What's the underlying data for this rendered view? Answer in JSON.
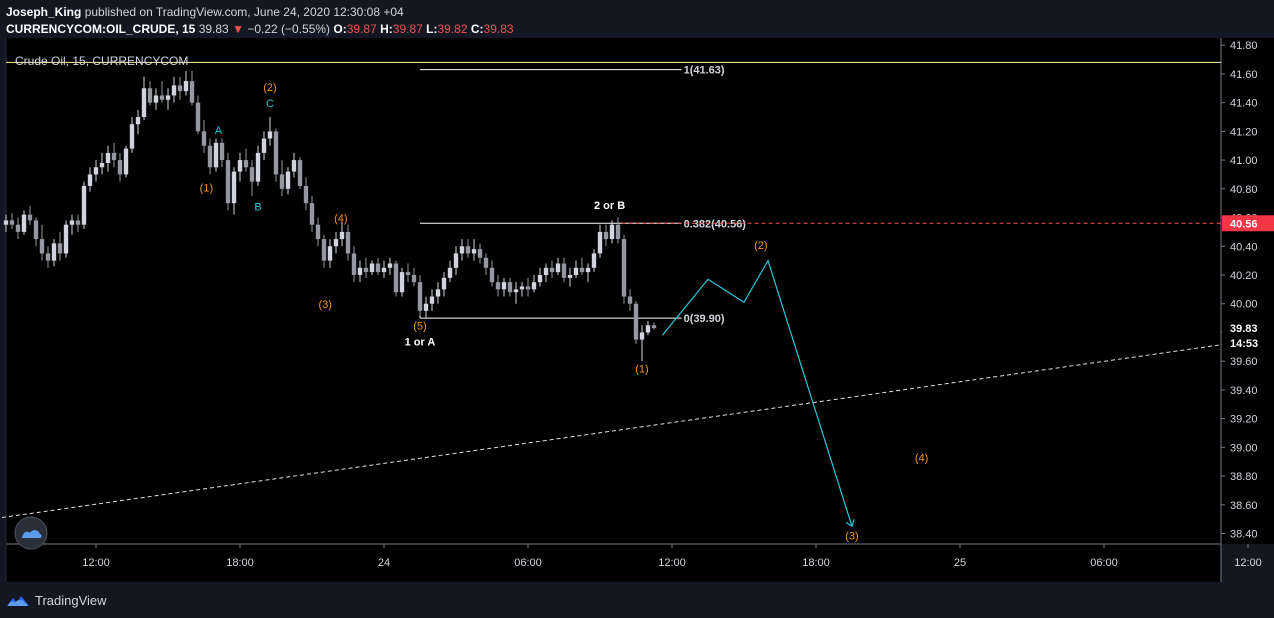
{
  "header": {
    "author": "Joseph_King",
    "published_text": "published on TradingView.com, June 24, 2020 12:30:08 +04",
    "symbol": "CURRENCYCOM:OIL_CRUDE, 15",
    "last": "39.83",
    "arrow": "▼",
    "change": "−0.22 (−0.55%)",
    "o_label": "O:",
    "o_value": "39.87",
    "h_label": "H:",
    "h_value": "39.87",
    "l_label": "L:",
    "l_value": "39.82",
    "c_label": "C:",
    "c_value": "39.83"
  },
  "legend_title": "Crude Oil, 15, CURRENCYCOM",
  "footer": {
    "brand": "TradingView"
  },
  "colors": {
    "background": "#000000",
    "up_candle": "#d1d4dc",
    "down_candle": "#9598a1",
    "orange": "#f7931a",
    "blue": "#26c6da",
    "white": "#ffffff",
    "red": "#ef5350",
    "yellow": "#fff59d"
  },
  "chart_data": {
    "type": "candlestick",
    "ylim": [
      38.32,
      41.85
    ],
    "y_ticks": [
      41.8,
      41.6,
      41.4,
      41.2,
      41.0,
      40.8,
      40.6,
      40.4,
      40.2,
      40.0,
      39.8,
      39.6,
      39.4,
      39.2,
      39.0,
      38.8,
      38.6,
      38.4
    ],
    "y_tick_labels": [
      "41.80",
      "41.60",
      "41.40",
      "41.20",
      "41.00",
      "40.80",
      "40.60",
      "40.40",
      "40.20",
      "40.00",
      "39.80",
      "39.60",
      "39.40",
      "39.20",
      "39.00",
      "38.80",
      "38.60",
      "38.40"
    ],
    "x_ticks": [
      {
        "label": "12:00",
        "t": 12
      },
      {
        "label": "18:00",
        "t": 18
      },
      {
        "label": "24",
        "t": 24
      },
      {
        "label": "06:00",
        "t": 30
      },
      {
        "label": "12:00",
        "t": 36
      },
      {
        "label": "18:00",
        "t": 42
      },
      {
        "label": "25",
        "t": 48
      },
      {
        "label": "06:00",
        "t": 54
      },
      {
        "label": "12:00",
        "t": 60
      }
    ],
    "candles": [
      [
        8.25,
        40.55,
        40.62,
        40.5,
        40.58
      ],
      [
        8.5,
        40.58,
        40.63,
        40.52,
        40.55
      ],
      [
        8.75,
        40.55,
        40.6,
        40.45,
        40.5
      ],
      [
        9.0,
        40.5,
        40.65,
        40.48,
        40.62
      ],
      [
        9.25,
        40.62,
        40.68,
        40.55,
        40.58
      ],
      [
        9.5,
        40.58,
        40.6,
        40.4,
        40.45
      ],
      [
        9.75,
        40.45,
        40.55,
        40.3,
        40.35
      ],
      [
        10.0,
        40.35,
        40.4,
        40.25,
        40.3
      ],
      [
        10.25,
        40.3,
        40.45,
        40.26,
        40.42
      ],
      [
        10.5,
        40.42,
        40.5,
        40.3,
        40.35
      ],
      [
        10.75,
        40.35,
        40.58,
        40.32,
        40.55
      ],
      [
        11.0,
        40.55,
        40.62,
        40.48,
        40.58
      ],
      [
        11.25,
        40.58,
        40.62,
        40.5,
        40.55
      ],
      [
        11.5,
        40.55,
        40.85,
        40.52,
        40.82
      ],
      [
        11.75,
        40.82,
        40.95,
        40.78,
        40.9
      ],
      [
        12.0,
        40.9,
        41.0,
        40.85,
        40.95
      ],
      [
        12.25,
        40.95,
        41.05,
        40.9,
        40.98
      ],
      [
        12.5,
        40.98,
        41.1,
        40.92,
        41.05
      ],
      [
        12.75,
        41.05,
        41.12,
        40.95,
        41.0
      ],
      [
        13.0,
        41.0,
        41.05,
        40.85,
        40.9
      ],
      [
        13.25,
        40.9,
        41.1,
        40.88,
        41.08
      ],
      [
        13.5,
        41.08,
        41.3,
        41.05,
        41.25
      ],
      [
        13.75,
        41.25,
        41.35,
        41.18,
        41.3
      ],
      [
        14.0,
        41.3,
        41.58,
        41.28,
        41.5
      ],
      [
        14.25,
        41.5,
        41.55,
        41.38,
        41.4
      ],
      [
        14.5,
        41.4,
        41.5,
        41.35,
        41.45
      ],
      [
        14.75,
        41.45,
        41.55,
        41.4,
        41.42
      ],
      [
        15.0,
        41.42,
        41.5,
        41.35,
        41.45
      ],
      [
        15.25,
        41.45,
        41.58,
        41.4,
        41.52
      ],
      [
        15.5,
        41.52,
        41.58,
        41.42,
        41.48
      ],
      [
        15.75,
        41.48,
        41.62,
        41.45,
        41.55
      ],
      [
        16.0,
        41.55,
        41.62,
        41.38,
        41.4
      ],
      [
        16.25,
        41.4,
        41.45,
        41.18,
        41.2
      ],
      [
        16.5,
        41.2,
        41.28,
        41.05,
        41.1
      ],
      [
        16.75,
        41.1,
        41.15,
        40.9,
        40.95
      ],
      [
        17.0,
        40.95,
        41.15,
        40.92,
        41.12
      ],
      [
        17.25,
        41.12,
        41.15,
        40.95,
        41.0
      ],
      [
        17.5,
        41.0,
        41.05,
        40.65,
        40.7
      ],
      [
        17.75,
        40.7,
        40.95,
        40.62,
        40.92
      ],
      [
        18.0,
        40.92,
        41.05,
        40.85,
        41.0
      ],
      [
        18.25,
        41.0,
        41.08,
        40.92,
        40.95
      ],
      [
        18.5,
        40.95,
        41.0,
        40.75,
        40.85
      ],
      [
        18.75,
        40.85,
        41.1,
        40.82,
        41.05
      ],
      [
        19.0,
        41.05,
        41.2,
        41.0,
        41.15
      ],
      [
        19.25,
        41.15,
        41.3,
        41.1,
        41.2
      ],
      [
        19.5,
        41.2,
        41.22,
        40.85,
        40.9
      ],
      [
        19.75,
        40.9,
        41.0,
        40.75,
        40.8
      ],
      [
        20.0,
        40.8,
        40.95,
        40.76,
        40.92
      ],
      [
        20.25,
        40.92,
        41.05,
        40.88,
        41.0
      ],
      [
        20.5,
        41.0,
        41.02,
        40.8,
        40.82
      ],
      [
        20.75,
        40.82,
        40.88,
        40.65,
        40.7
      ],
      [
        21.0,
        40.7,
        40.75,
        40.5,
        40.55
      ],
      [
        21.25,
        40.55,
        40.6,
        40.4,
        40.45
      ],
      [
        21.5,
        40.45,
        40.48,
        40.25,
        40.3
      ],
      [
        21.75,
        40.3,
        40.45,
        40.25,
        40.4
      ],
      [
        22.0,
        40.4,
        40.5,
        40.35,
        40.45
      ],
      [
        22.25,
        40.45,
        40.58,
        40.4,
        40.5
      ],
      [
        22.5,
        40.5,
        40.55,
        40.3,
        40.35
      ],
      [
        22.75,
        40.35,
        40.4,
        40.15,
        40.2
      ],
      [
        23.0,
        40.2,
        40.3,
        40.15,
        40.25
      ],
      [
        23.25,
        40.25,
        40.32,
        40.18,
        40.22
      ],
      [
        23.5,
        40.22,
        40.3,
        40.2,
        40.28
      ],
      [
        23.75,
        40.28,
        40.32,
        40.2,
        40.22
      ],
      [
        24.0,
        40.22,
        40.3,
        40.18,
        40.25
      ],
      [
        24.25,
        40.25,
        40.32,
        40.2,
        40.28
      ],
      [
        24.5,
        40.28,
        40.3,
        40.05,
        40.08
      ],
      [
        24.75,
        40.08,
        40.25,
        40.05,
        40.22
      ],
      [
        25.0,
        40.22,
        40.28,
        40.15,
        40.2
      ],
      [
        25.25,
        40.2,
        40.25,
        40.12,
        40.15
      ],
      [
        25.5,
        40.15,
        40.2,
        39.92,
        39.95
      ],
      [
        25.75,
        39.95,
        40.05,
        39.9,
        40.0
      ],
      [
        26.0,
        40.0,
        40.1,
        39.95,
        40.05
      ],
      [
        26.25,
        40.05,
        40.15,
        40.0,
        40.1
      ],
      [
        26.5,
        40.1,
        40.22,
        40.05,
        40.18
      ],
      [
        26.75,
        40.18,
        40.3,
        40.15,
        40.25
      ],
      [
        27.0,
        40.25,
        40.4,
        40.2,
        40.35
      ],
      [
        27.25,
        40.35,
        40.45,
        40.3,
        40.4
      ],
      [
        27.5,
        40.4,
        40.45,
        40.32,
        40.35
      ],
      [
        27.75,
        40.35,
        40.45,
        40.3,
        40.38
      ],
      [
        28.0,
        40.38,
        40.42,
        40.28,
        40.32
      ],
      [
        28.25,
        40.32,
        40.35,
        40.2,
        40.25
      ],
      [
        28.5,
        40.25,
        40.3,
        40.12,
        40.15
      ],
      [
        28.75,
        40.15,
        40.2,
        40.05,
        40.1
      ],
      [
        29.0,
        40.1,
        40.18,
        40.05,
        40.15
      ],
      [
        29.25,
        40.15,
        40.18,
        40.05,
        40.08
      ],
      [
        29.5,
        40.08,
        40.15,
        40.0,
        40.1
      ],
      [
        29.75,
        40.1,
        40.15,
        40.05,
        40.12
      ],
      [
        30.0,
        40.12,
        40.18,
        40.05,
        40.1
      ],
      [
        30.25,
        40.1,
        40.2,
        40.08,
        40.15
      ],
      [
        30.5,
        40.15,
        40.25,
        40.12,
        40.2
      ],
      [
        30.75,
        40.2,
        40.28,
        40.15,
        40.25
      ],
      [
        31.0,
        40.25,
        40.3,
        40.18,
        40.22
      ],
      [
        31.25,
        40.22,
        40.32,
        40.2,
        40.28
      ],
      [
        31.5,
        40.28,
        40.32,
        40.15,
        40.18
      ],
      [
        31.75,
        40.18,
        40.25,
        40.12,
        40.2
      ],
      [
        32.0,
        40.2,
        40.3,
        40.18,
        40.25
      ],
      [
        32.25,
        40.25,
        40.32,
        40.2,
        40.22
      ],
      [
        32.5,
        40.22,
        40.28,
        40.15,
        40.25
      ],
      [
        32.75,
        40.25,
        40.38,
        40.22,
        40.35
      ],
      [
        33.0,
        40.35,
        40.55,
        40.32,
        40.5
      ],
      [
        33.25,
        40.5,
        40.55,
        40.4,
        40.45
      ],
      [
        33.5,
        40.45,
        40.58,
        40.42,
        40.55
      ],
      [
        33.75,
        40.55,
        40.6,
        40.42,
        40.45
      ],
      [
        34.0,
        40.45,
        40.48,
        40.0,
        40.05
      ],
      [
        34.25,
        40.05,
        40.1,
        39.95,
        40.0
      ],
      [
        34.5,
        40.0,
        40.02,
        39.72,
        39.75
      ],
      [
        34.75,
        39.75,
        39.85,
        39.6,
        39.8
      ],
      [
        35.0,
        39.8,
        39.88,
        39.78,
        39.85
      ],
      [
        35.25,
        39.85,
        39.87,
        39.82,
        39.83
      ]
    ],
    "fib_levels": [
      {
        "label": "1(41.63)",
        "price": 41.63
      },
      {
        "label": "0.382(40.56)",
        "price": 40.56
      },
      {
        "label": "0(39.90)",
        "price": 39.9
      }
    ],
    "horizontal_line_price": 41.68,
    "current_price": "39.83",
    "current_price_value": 39.83,
    "countdown": "14:53",
    "alert_price": "40.56",
    "alert_price_value": 40.56,
    "trendline": {
      "points": [
        [
          0.0,
          38.32
        ],
        [
          62.5,
          39.8
        ]
      ]
    },
    "projection_path": [
      [
        35.6,
        39.78
      ],
      [
        37.5,
        40.17
      ],
      [
        39.0,
        40.01
      ],
      [
        40.0,
        40.3
      ],
      [
        43.5,
        38.45
      ]
    ],
    "wave_labels": [
      {
        "text": "(2)",
        "t": 19.25,
        "price": 41.48,
        "color": "orange"
      },
      {
        "text": "C",
        "t": 19.25,
        "price": 41.37,
        "color": "blue"
      },
      {
        "text": "A",
        "t": 17.1,
        "price": 41.18,
        "color": "blue"
      },
      {
        "text": "(1)",
        "t": 16.6,
        "price": 40.78,
        "color": "orange"
      },
      {
        "text": "B",
        "t": 18.75,
        "price": 40.65,
        "color": "blue"
      },
      {
        "text": "(4)",
        "t": 22.2,
        "price": 40.57,
        "color": "orange"
      },
      {
        "text": "(3)",
        "t": 21.55,
        "price": 39.97,
        "color": "orange"
      },
      {
        "text": "(5)",
        "t": 25.5,
        "price": 39.82,
        "color": "orange"
      },
      {
        "text": "1 or A",
        "t": 25.5,
        "price": 39.71,
        "color": "white"
      },
      {
        "text": "2 or B",
        "t": 33.4,
        "price": 40.66,
        "color": "white"
      },
      {
        "text": "(1)",
        "t": 34.75,
        "price": 39.52,
        "color": "orange"
      },
      {
        "text": "(2)",
        "t": 39.7,
        "price": 40.38,
        "color": "orange"
      },
      {
        "text": "(4)",
        "t": 46.4,
        "price": 38.9,
        "color": "orange"
      },
      {
        "text": "(3)",
        "t": 43.5,
        "price": 38.36,
        "color": "orange"
      }
    ]
  }
}
